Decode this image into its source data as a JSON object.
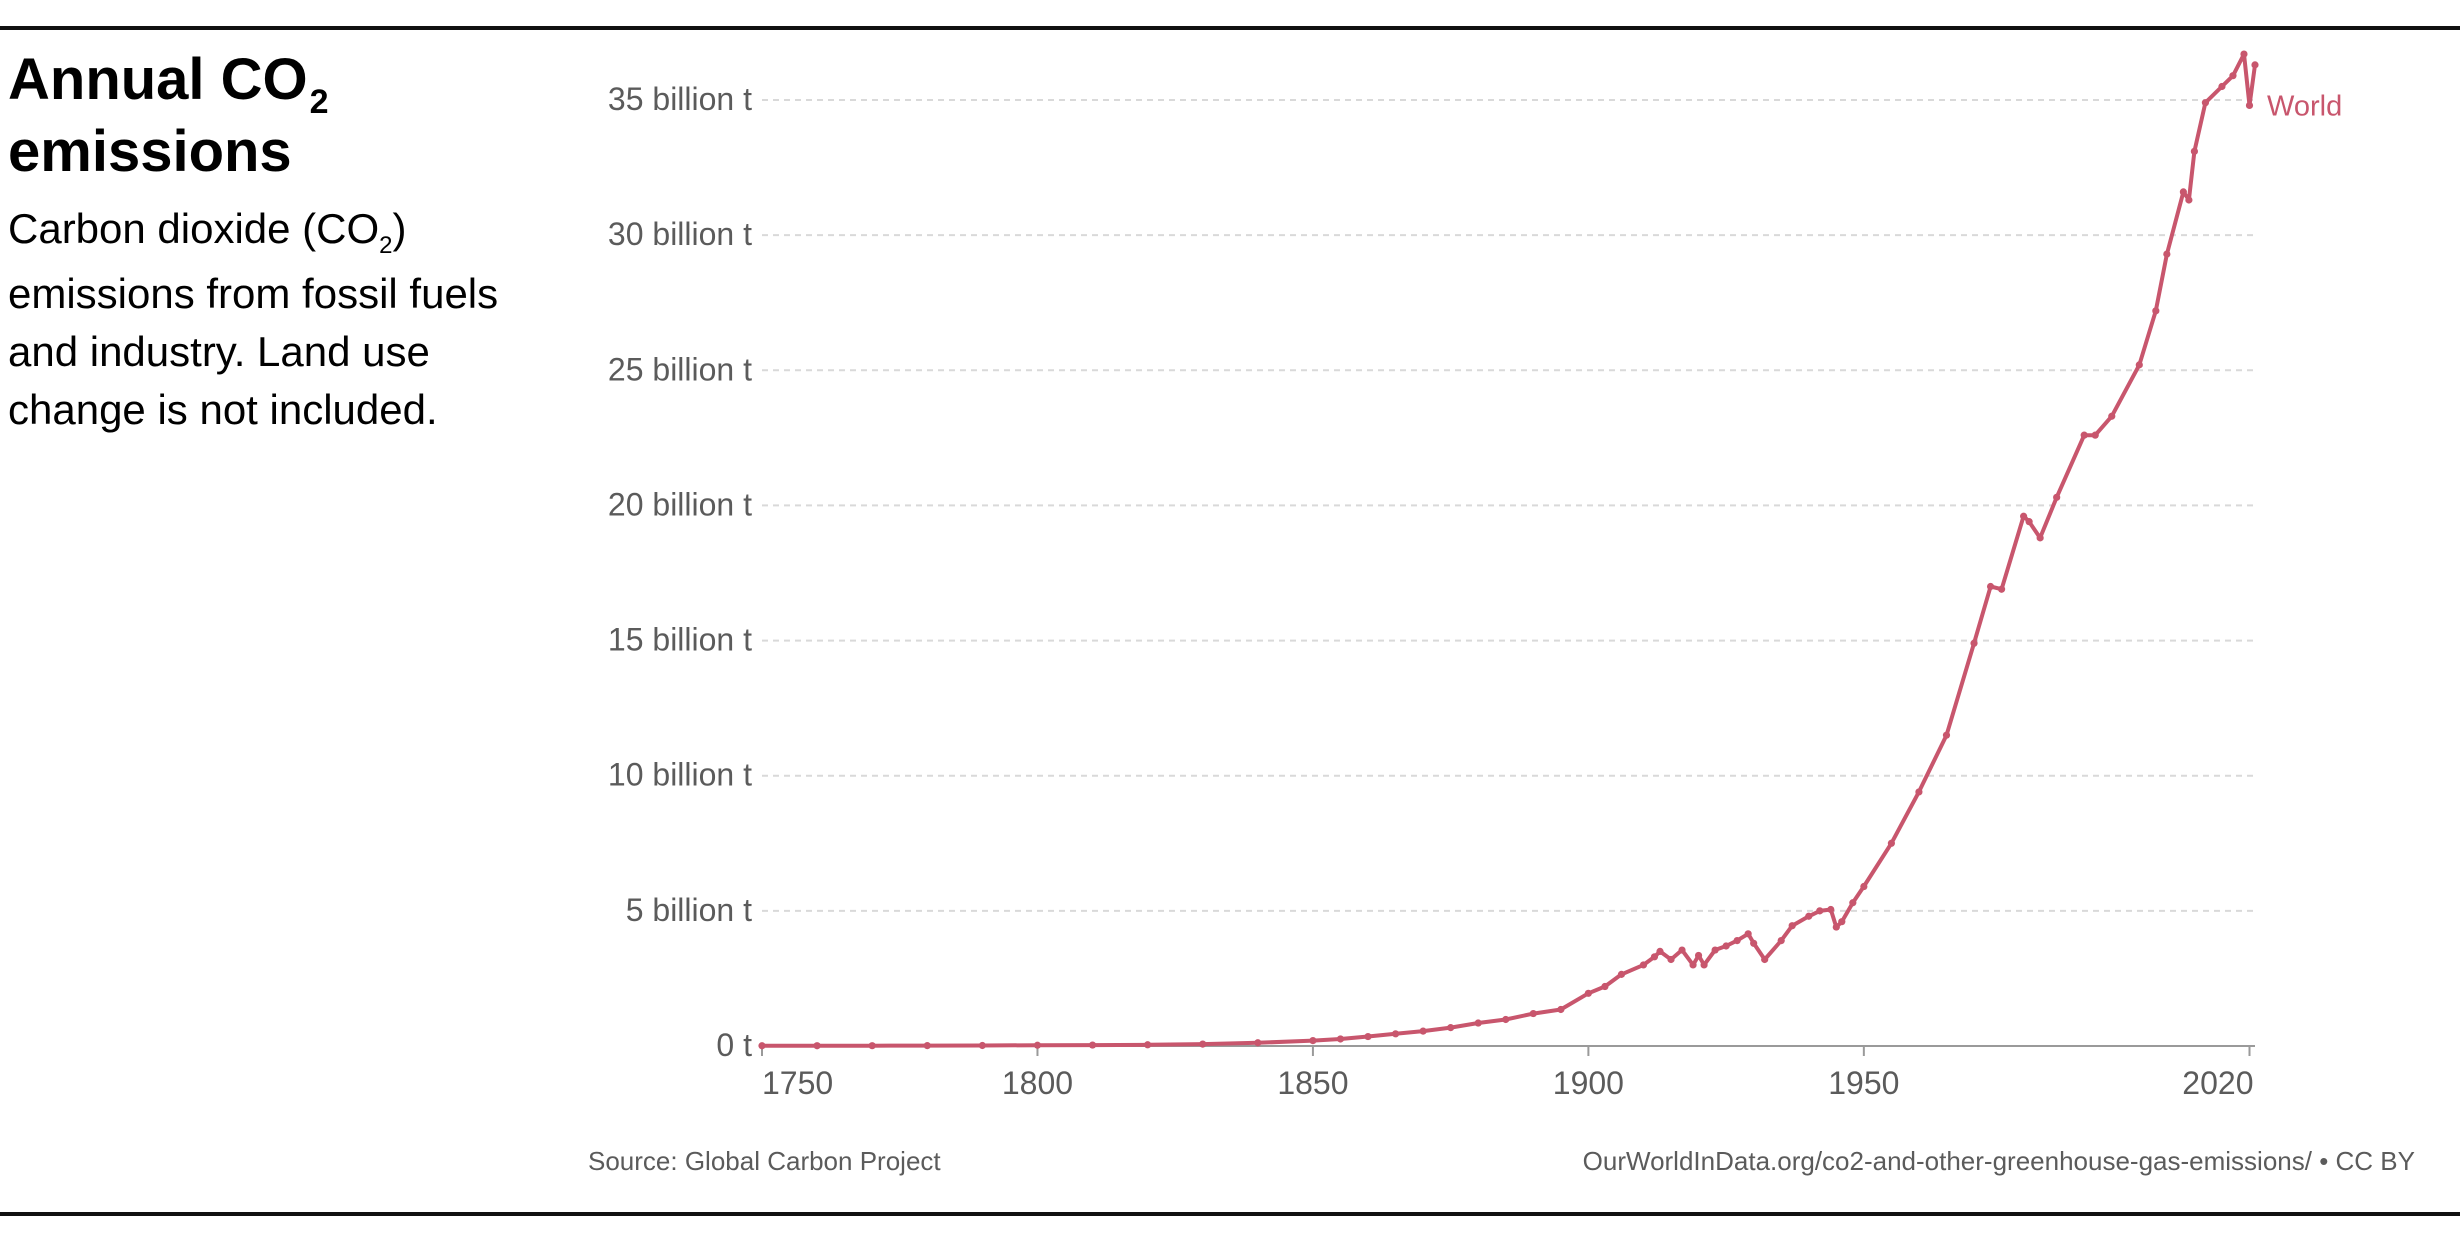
{
  "title": {
    "before": "Annual CO",
    "sub": "2",
    "after": "emissions"
  },
  "subtitle": {
    "before": "Carbon dioxide (CO",
    "sub": "2",
    "after": ") emissions from fossil fuels and industry. Land use change is not included."
  },
  "footer": {
    "source": "Source: Global Carbon Project",
    "credit": "OurWorldInData.org/co2-and-other-greenhouse-gas-emissions/ • CC BY"
  },
  "chart_data": {
    "type": "line",
    "y_tick_labels": [
      "0 t",
      "5 billion t",
      "10 billion t",
      "15 billion t",
      "20 billion t",
      "25 billion t",
      "30 billion t",
      "35 billion t"
    ],
    "x_tick_labels": [
      "1750",
      "1800",
      "1850",
      "1900",
      "1950",
      "2020"
    ],
    "xlim": [
      1750,
      2021
    ],
    "ylim": [
      0,
      35
    ],
    "grid": true,
    "series_color": "#c8566d",
    "series": [
      {
        "name": "World",
        "x": [
          1750,
          1760,
          1770,
          1780,
          1790,
          1800,
          1810,
          1820,
          1830,
          1840,
          1850,
          1855,
          1860,
          1865,
          1870,
          1875,
          1880,
          1885,
          1890,
          1895,
          1900,
          1903,
          1906,
          1910,
          1912,
          1913,
          1915,
          1917,
          1919,
          1920,
          1921,
          1923,
          1925,
          1927,
          1929,
          1930,
          1932,
          1935,
          1937,
          1940,
          1942,
          1944,
          1945,
          1946,
          1948,
          1950,
          1955,
          1960,
          1965,
          1970,
          1973,
          1975,
          1979,
          1980,
          1982,
          1985,
          1990,
          1992,
          1995,
          2000,
          2003,
          2005,
          2008,
          2009,
          2010,
          2012,
          2015,
          2017,
          2019,
          2020,
          2021
        ],
        "y": [
          0.009,
          0.01,
          0.012,
          0.014,
          0.018,
          0.028,
          0.035,
          0.045,
          0.07,
          0.12,
          0.2,
          0.26,
          0.35,
          0.45,
          0.55,
          0.68,
          0.85,
          0.98,
          1.2,
          1.35,
          1.95,
          2.2,
          2.65,
          3.0,
          3.3,
          3.5,
          3.2,
          3.55,
          3.0,
          3.35,
          3.0,
          3.55,
          3.7,
          3.9,
          4.15,
          3.8,
          3.2,
          3.9,
          4.45,
          4.8,
          5.0,
          5.05,
          4.4,
          4.6,
          5.3,
          5.9,
          7.5,
          9.4,
          11.5,
          14.9,
          17.0,
          16.9,
          19.6,
          19.4,
          18.8,
          20.3,
          22.6,
          22.6,
          23.3,
          25.2,
          27.2,
          29.3,
          31.6,
          31.3,
          33.1,
          34.9,
          35.5,
          35.9,
          36.7,
          34.8,
          36.3
        ]
      }
    ]
  }
}
